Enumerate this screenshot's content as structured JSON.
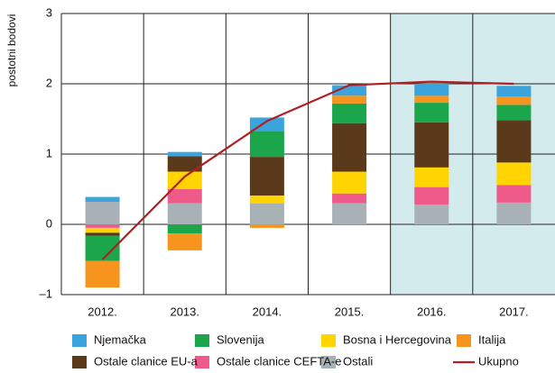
{
  "chart_data": {
    "type": "bar",
    "y_label": "postotni bodovi",
    "categories": [
      "2012.",
      "2013.",
      "2014.",
      "2015.",
      "2016.",
      "2017."
    ],
    "shaded": [
      4,
      5
    ],
    "shade_color": "#d3ebed",
    "ylim": [
      -1,
      3
    ],
    "yticks": [
      {
        "value": -1,
        "label": "–1"
      },
      0,
      1,
      2,
      3
    ],
    "grid": true,
    "series": [
      {
        "name": "Ostali",
        "color": "#a8b1b6",
        "values": [
          0.32,
          0.3,
          0.3,
          0.3,
          0.28,
          0.31
        ]
      },
      {
        "name": "Ostale clanice CEFTA-e",
        "color": "#ee5a8a",
        "values": [
          -0.05,
          0.2,
          0,
          0.14,
          0.25,
          0.25
        ]
      },
      {
        "name": "Bosna i Hercegovina",
        "color": "#ffd400",
        "values": [
          -0.07,
          0.25,
          0.11,
          0.31,
          0.28,
          0.32
        ]
      },
      {
        "name": "Ostale clanice EU-a",
        "color": "#5a3a1b",
        "values": [
          -0.04,
          0.22,
          0.55,
          0.69,
          0.64,
          0.6
        ]
      },
      {
        "name": "Slovenija",
        "color": "#1ba64b",
        "values": [
          -0.36,
          -0.13,
          0.37,
          0.28,
          0.28,
          0.22
        ]
      },
      {
        "name": "Italija",
        "color": "#f7941d",
        "values": [
          -0.38,
          -0.24,
          -0.05,
          0.11,
          0.1,
          0.12
        ]
      },
      {
        "name": "Njemačka",
        "color": "#3ba4dc",
        "values": [
          0.07,
          0.06,
          0.19,
          0.15,
          0.17,
          0.15
        ]
      },
      {
        "name": "Ukupno",
        "type": "line",
        "color": "#b01f24",
        "values": [
          -0.5,
          0.68,
          1.47,
          1.98,
          2.03,
          2.0
        ]
      }
    ]
  }
}
